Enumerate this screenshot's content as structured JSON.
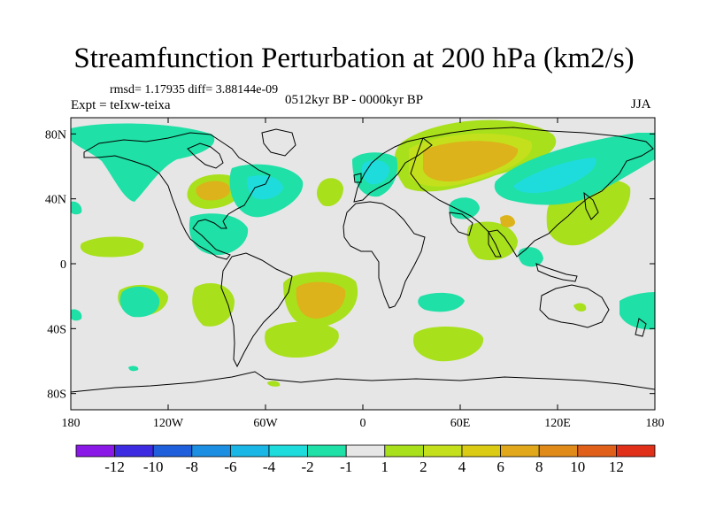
{
  "title": "Streamfunction Perturbation at 200 hPa (km2/s)",
  "stats": "rmsd= 1.17935 diff= 3.88144e-09",
  "expt": "Expt = teIxw-teixa",
  "period": "0512kyr BP - 0000kyr BP",
  "season": "JJA",
  "axes": {
    "lon_ticks": [
      {
        "lon": -180,
        "label": "180"
      },
      {
        "lon": -120,
        "label": "120W"
      },
      {
        "lon": -60,
        "label": "60W"
      },
      {
        "lon": 0,
        "label": "0"
      },
      {
        "lon": 60,
        "label": "60E"
      },
      {
        "lon": 120,
        "label": "120E"
      },
      {
        "lon": 180,
        "label": "180"
      }
    ],
    "lat_ticks": [
      {
        "lat": 80,
        "label": "80N"
      },
      {
        "lat": 40,
        "label": "40N"
      },
      {
        "lat": 0,
        "label": "0"
      },
      {
        "lat": -40,
        "label": "40S"
      },
      {
        "lat": -80,
        "label": "80S"
      }
    ]
  },
  "colorbar": {
    "colors": [
      "#8a18e6",
      "#3c2be0",
      "#1f5fdc",
      "#1c8fe3",
      "#1ab7e6",
      "#1fdcdc",
      "#1fe0a6",
      "#e6e6e6",
      "#a8e01c",
      "#c4e01c",
      "#dccb14",
      "#e0a81a",
      "#e08a1a",
      "#e0601a",
      "#e0301a"
    ],
    "labels": [
      "-12",
      "-10",
      "-8",
      "-6",
      "-4",
      "-2",
      "-1",
      "1",
      "2",
      "4",
      "6",
      "8",
      "10",
      "12"
    ]
  },
  "map_colors": {
    "background": "#e6e6e6",
    "pos1": "#a8e01c",
    "pos2": "#c4e01c",
    "pos3": "#dcb31a",
    "neg1": "#1fe0a6",
    "neg2": "#1fdcdc"
  }
}
